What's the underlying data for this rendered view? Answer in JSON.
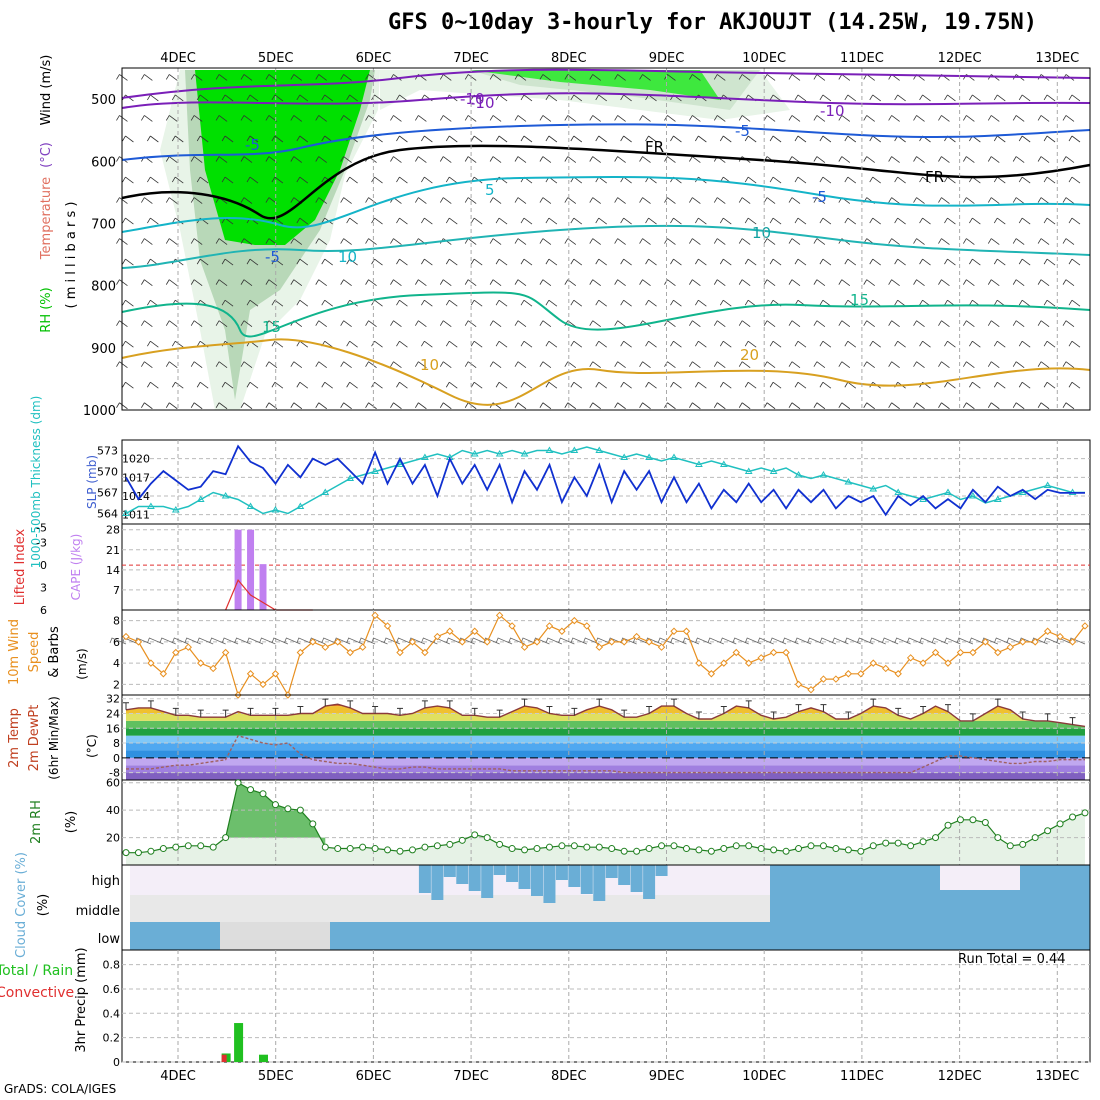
{
  "title": "GFS 0~10day 3-hourly for AKJOUJT (14.25W, 19.75N)",
  "footer": "GrADS: COLA/IGES",
  "run_total_text": "Run Total = 0.44",
  "colors": {
    "rh": "#00e000",
    "temp_cold": "#7a1fb8",
    "temp_mid": "#1e5ad6",
    "temp_warm": "#14b4c8",
    "temp_15": "#10b48c",
    "temp_hot": "#d8a020",
    "slp": "#1030d0",
    "thickness": "#20c0c0",
    "cape": "#c080f0",
    "lifted": "#e03030",
    "wind": "#e89020",
    "rh2m": "#208020",
    "cloud": "#6aaed6",
    "precip_total": "#20c020",
    "precip_conv": "#e03030"
  },
  "chart_data": [
    {
      "type": "heatmap",
      "panel": "upper-air",
      "ylabel_parts": [
        {
          "text": "RH (%)",
          "color": "#00c000"
        },
        {
          "text": "Temperature",
          "color": "#e07060"
        },
        {
          "text": "(°C)",
          "color": "#8040c0"
        },
        {
          "text": "Wind (m/s)",
          "color": "#000000"
        }
      ],
      "ylabel2": "( m i l l i b a r s )",
      "dates": [
        "4DEC",
        "5DEC",
        "6DEC",
        "7DEC",
        "8DEC",
        "9DEC",
        "10DEC",
        "11DEC",
        "12DEC",
        "13DEC"
      ],
      "pressure_ticks": [
        500,
        600,
        700,
        800,
        900,
        1000
      ],
      "ylim": [
        450,
        1000
      ],
      "contour_labels": [
        "-10",
        "-10",
        "-10",
        "-5",
        "-5",
        "-5",
        "FR",
        "FR",
        "-5",
        "5",
        "10",
        "10",
        "15",
        "15",
        "10",
        "20"
      ]
    },
    {
      "type": "line",
      "panel": "slp-thickness",
      "ylabel_left": "1000-500mb Thickness (dm)",
      "ylabel_right": "SLP (mb)",
      "thickness_ticks": [
        564,
        567,
        570,
        573
      ],
      "slp_ticks": [
        1011,
        1014,
        1017,
        1020
      ],
      "series": [
        {
          "name": "SLP",
          "values": [
            1017,
            1013.5,
            1016,
            1018,
            1016.5,
            1015,
            1015.5,
            1018,
            1017.5,
            1022,
            1019.5,
            1018.5,
            1016,
            1019,
            1017,
            1020,
            1019,
            1020,
            1018,
            1016,
            1021,
            1016,
            1020,
            1016,
            1019,
            1014,
            1020,
            1016,
            1019,
            1015,
            1019,
            1013,
            1018,
            1015,
            1019,
            1013,
            1017,
            1014,
            1019,
            1013,
            1018,
            1015,
            1018,
            1013,
            1017,
            1013,
            1016,
            1012,
            1015,
            1013,
            1016,
            1013,
            1015,
            1012,
            1015,
            1013,
            1015,
            1012,
            1014,
            1013,
            1014,
            1011,
            1014,
            1012.5,
            1014,
            1012,
            1013.5,
            1012,
            1015,
            1013,
            1015.5,
            1014,
            1015,
            1013.5,
            1015,
            1014.5,
            1014.5,
            1014.5
          ]
        },
        {
          "name": "Thickness",
          "values": [
            564,
            565,
            565,
            565,
            564.5,
            565,
            566,
            567,
            566.5,
            566,
            565,
            564,
            564.5,
            564,
            565,
            566,
            567,
            568,
            569,
            569.5,
            570,
            570.5,
            571,
            571.5,
            572,
            572.5,
            572,
            573,
            572.5,
            573,
            572.5,
            573,
            572.5,
            573,
            573,
            572.5,
            573,
            573.5,
            573,
            572.5,
            572,
            572.5,
            572,
            571.5,
            572,
            571.5,
            571,
            571.5,
            571,
            570.5,
            570,
            570.5,
            570,
            570.5,
            569.5,
            569,
            569.5,
            569,
            568.5,
            568,
            567.5,
            568,
            567,
            566.5,
            566,
            566.5,
            567,
            566,
            566.5,
            565.5,
            566,
            566.5,
            567,
            567.5,
            568,
            567.5,
            567,
            567
          ]
        }
      ]
    },
    {
      "type": "bar",
      "panel": "cape-li",
      "ylabel_left": "Lifted Index",
      "ylabel_right": "CAPE (J/kg)",
      "li_ticks": [
        "-3",
        "0",
        "3",
        "6"
      ],
      "li_top_label": "-5",
      "cape_ticks": [
        7,
        14,
        21,
        28
      ],
      "series": [
        {
          "name": "CAPE",
          "values": [
            0,
            0,
            0,
            0,
            0,
            0,
            0,
            0,
            0,
            28,
            28,
            16,
            0,
            0,
            0,
            0,
            0,
            0,
            0,
            0,
            0,
            0,
            0,
            0,
            0,
            0,
            0,
            0,
            0,
            0,
            0,
            0,
            0,
            0,
            0,
            0,
            0,
            0,
            0,
            0,
            0,
            0,
            0,
            0,
            0,
            0,
            0,
            0,
            0,
            0,
            0,
            0,
            0,
            0,
            0,
            0,
            0,
            0,
            0,
            0,
            0,
            0,
            0,
            0,
            0,
            0,
            0,
            0,
            0,
            0,
            0,
            0,
            0,
            0,
            0,
            0,
            0,
            0
          ]
        },
        {
          "name": "Lifted Index",
          "values": [
            null,
            null,
            null,
            null,
            null,
            null,
            null,
            null,
            6,
            2,
            4,
            5,
            6,
            6,
            null,
            6,
            null,
            null,
            null,
            null,
            null,
            null,
            null,
            null,
            null,
            null,
            null,
            null,
            null,
            null,
            null,
            null,
            null,
            null,
            null,
            null,
            null,
            null,
            null,
            null,
            null,
            null,
            null,
            null,
            null,
            null,
            null,
            null,
            null,
            null,
            null,
            null,
            null,
            null,
            null,
            null,
            null,
            null,
            null,
            null,
            null,
            null,
            null,
            null,
            null,
            null,
            null,
            null,
            null,
            null,
            null,
            null,
            null,
            null,
            null,
            null,
            null,
            null
          ]
        }
      ]
    },
    {
      "type": "line",
      "panel": "wind10m",
      "ylabel": "10m Wind Speed & Barbs (m/s)",
      "ylabel_parts": [
        {
          "text": "10m Wind",
          "color": "#e89020"
        },
        {
          "text": "Speed",
          "color": "#e89020"
        },
        {
          "text": "& Barbs",
          "color": "#000000"
        }
      ],
      "yticks": [
        2,
        4,
        6,
        8
      ],
      "ylim": [
        1,
        9
      ],
      "series": [
        {
          "name": "Wind Speed",
          "values": [
            6.5,
            6,
            4,
            3,
            5,
            5.5,
            4,
            3.5,
            5,
            1,
            3,
            2,
            3,
            1,
            5,
            6,
            5.5,
            6,
            5,
            5.5,
            8.5,
            7.5,
            5,
            6,
            5,
            6.5,
            7,
            6,
            7,
            6,
            8.5,
            7.5,
            5.5,
            6,
            7.5,
            7,
            8,
            7.5,
            5.5,
            6,
            6,
            6.5,
            6,
            5.5,
            7,
            7,
            4,
            3,
            4,
            5,
            4,
            4.5,
            5,
            5,
            2,
            1.5,
            2.5,
            2.5,
            3,
            3,
            4,
            3.5,
            3,
            4.5,
            4,
            5,
            4,
            5,
            5,
            6,
            5,
            5.5,
            6,
            6,
            7,
            6.5,
            6,
            7.5
          ]
        }
      ]
    },
    {
      "type": "area",
      "panel": "temp2m",
      "ylabel_parts": [
        {
          "text": "2m Temp",
          "color": "#c04020"
        },
        {
          "text": "2m DewPt",
          "color": "#c04020"
        },
        {
          "text": "(6hr Min/Max)",
          "color": "#000000"
        }
      ],
      "yticks": [
        -8,
        0,
        8,
        16,
        24,
        32
      ],
      "ylim": [
        -12,
        34
      ],
      "series": [
        {
          "name": "2m Temp",
          "values": [
            26,
            27,
            27,
            25,
            23,
            23,
            22,
            22,
            22,
            25,
            23,
            23,
            23,
            23,
            24,
            24,
            28,
            29,
            27,
            24,
            24,
            24,
            23,
            24,
            27,
            28,
            27,
            23,
            23,
            22,
            22,
            25,
            28,
            27,
            24,
            23,
            23,
            26,
            28,
            26,
            22,
            22,
            24,
            28,
            28,
            24,
            21,
            21,
            24,
            28,
            27,
            23,
            21,
            22,
            25,
            27,
            25,
            21,
            21,
            24,
            28,
            27,
            23,
            21,
            24,
            28,
            25,
            20,
            20,
            24,
            28,
            26,
            21,
            20,
            20,
            19,
            18,
            17
          ]
        },
        {
          "name": "2m DewPt",
          "values": [
            -6,
            -6,
            -6,
            -5,
            -4,
            -4,
            -3,
            -2,
            -1,
            12,
            10,
            8,
            7,
            8,
            2,
            -1,
            -2,
            -3,
            -3,
            -4,
            -5,
            -6,
            -6,
            -5,
            -5,
            -6,
            -6,
            -6,
            -6,
            -6,
            -6,
            -7,
            -7,
            -7,
            -7,
            -7,
            -7,
            -7,
            -7,
            -7,
            -8,
            -8,
            -8,
            -8,
            -8,
            -8,
            -8,
            -8,
            -8,
            -8,
            -8,
            -8,
            -8,
            -8,
            -8,
            -8,
            -8,
            -8,
            -8,
            -8,
            -8,
            -8,
            -8,
            -8,
            -5,
            -2,
            1,
            1,
            0,
            -1,
            -2,
            -3,
            -3,
            -2,
            -2,
            -1,
            -1,
            -1
          ]
        }
      ]
    },
    {
      "type": "line",
      "panel": "rh2m",
      "ylabel": "2m RH (%)",
      "yticks": [
        20,
        40,
        60
      ],
      "ylim": [
        0,
        62
      ],
      "series": [
        {
          "name": "2m RH",
          "values": [
            9,
            9,
            10,
            12,
            13,
            14,
            14,
            13,
            20,
            60,
            55,
            52,
            44,
            41,
            40,
            30,
            13,
            12,
            12,
            13,
            12,
            11,
            10,
            11,
            13,
            14,
            15,
            18,
            22,
            20,
            15,
            12,
            11,
            12,
            13,
            14,
            14,
            13,
            13,
            12,
            10,
            10,
            12,
            14,
            14,
            12,
            11,
            10,
            12,
            14,
            14,
            12,
            11,
            10,
            12,
            14,
            14,
            12,
            11,
            10,
            14,
            16,
            16,
            14,
            17,
            20,
            29,
            33,
            33,
            31,
            20,
            14,
            15,
            20,
            25,
            30,
            35,
            38
          ]
        }
      ]
    },
    {
      "type": "heatmap",
      "panel": "cloud",
      "ylabel": "Cloud Cover (%)",
      "levels": [
        "high",
        "middle",
        "low"
      ]
    },
    {
      "type": "bar",
      "panel": "precip",
      "ylabel_parts": [
        {
          "text": "Total / Rain",
          "color": "#20c020"
        },
        {
          "text": "Convective",
          "color": "#e03030"
        },
        {
          "text": "3hr Precip (mm)",
          "color": "#000000"
        }
      ],
      "yticks": [
        0,
        0.2,
        0.4,
        0.6,
        0.8
      ],
      "ylim": [
        0,
        0.92
      ],
      "series": [
        {
          "name": "Total",
          "values": [
            0,
            0,
            0,
            0,
            0,
            0,
            0,
            0,
            0.07,
            0.32,
            0,
            0.06,
            0,
            0,
            0,
            0,
            0,
            0,
            0,
            0,
            0,
            0,
            0,
            0,
            0,
            0,
            0,
            0,
            0,
            0,
            0,
            0,
            0,
            0,
            0,
            0,
            0,
            0,
            0,
            0,
            0,
            0,
            0,
            0,
            0,
            0,
            0,
            0,
            0,
            0,
            0,
            0,
            0,
            0,
            0,
            0,
            0,
            0,
            0,
            0,
            0,
            0,
            0,
            0,
            0,
            0,
            0,
            0,
            0,
            0,
            0,
            0,
            0,
            0,
            0,
            0,
            0,
            0
          ]
        },
        {
          "name": "Convective",
          "values": [
            0,
            0,
            0,
            0,
            0,
            0,
            0,
            0,
            0.06,
            0,
            0,
            0,
            0,
            0,
            0,
            0,
            0,
            0,
            0,
            0,
            0,
            0,
            0,
            0,
            0,
            0,
            0,
            0,
            0,
            0,
            0,
            0,
            0,
            0,
            0,
            0,
            0,
            0,
            0,
            0,
            0,
            0,
            0,
            0,
            0,
            0,
            0,
            0,
            0,
            0,
            0,
            0,
            0,
            0,
            0,
            0,
            0,
            0,
            0,
            0,
            0,
            0,
            0,
            0,
            0,
            0,
            0,
            0,
            0,
            0,
            0,
            0,
            0,
            0,
            0,
            0,
            0,
            0
          ]
        }
      ]
    }
  ]
}
